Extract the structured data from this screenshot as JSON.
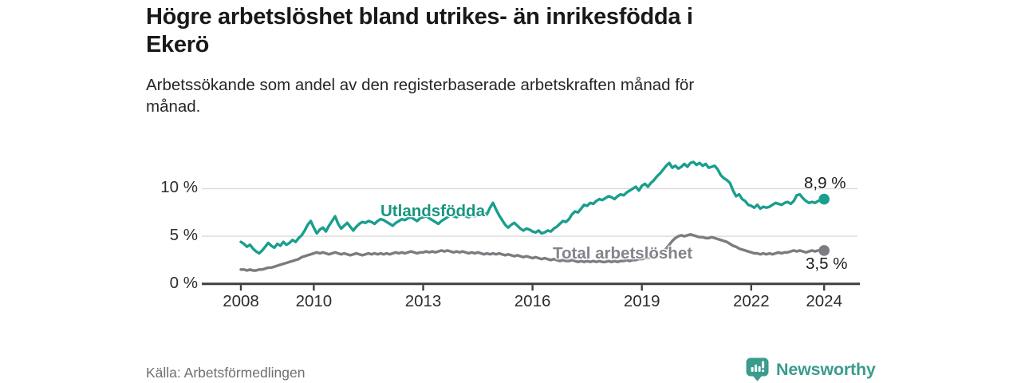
{
  "header": {
    "title": "Högre arbetslöshet bland utrikes- än inrikesfödda i\nEkerö",
    "subtitle": "Arbetssökande som andel av den registerbaserade arbetskraften månad för\nmånad."
  },
  "footer": {
    "source": "Källa: Arbetsförmedlingen",
    "brand": "Newsworthy",
    "brand_icon": "bar-chart-speech-bubble-icon"
  },
  "colors": {
    "foreign_born": "#1a9e8e",
    "total": "#7b7b81",
    "axis": "#3f3f42",
    "grid": "#dadada",
    "title_text": "#191919",
    "tick_text": "#2d2d2d",
    "muted_text": "#6f6f6f",
    "brand": "#3a9c8c"
  },
  "chart_data": {
    "type": "line",
    "title": "Högre arbetslöshet bland utrikes- än inrikesfödda i Ekerö",
    "subtitle": "Arbetssökande som andel av den registerbaserade arbetskraften månad för månad.",
    "xlabel": "",
    "ylabel": "",
    "x_unit": "monthly, January 2008 – January 2024",
    "x_start": 2008.0,
    "x_step_months": 1,
    "xlim": [
      2008,
      2024.08
    ],
    "ylim": [
      0,
      13
    ],
    "grid": "horizontal",
    "legend_position": "inline-labels",
    "yticks": [
      {
        "value": 0,
        "label": "0 %"
      },
      {
        "value": 5,
        "label": "5 %"
      },
      {
        "value": 10,
        "label": "10 %"
      }
    ],
    "xticks": [
      {
        "value": 2008,
        "label": "2008"
      },
      {
        "value": 2010,
        "label": "2010"
      },
      {
        "value": 2013,
        "label": "2013"
      },
      {
        "value": 2016,
        "label": "2016"
      },
      {
        "value": 2019,
        "label": "2019"
      },
      {
        "value": 2022,
        "label": "2022"
      },
      {
        "value": 2024,
        "label": "2024"
      }
    ],
    "series": [
      {
        "name": "Utlandsfödda",
        "color": "#1a9e8e",
        "end_label": "8,9 %",
        "end_value": 8.9,
        "values": [
          4.4,
          4.2,
          3.9,
          4.1,
          3.7,
          3.4,
          3.2,
          3.5,
          3.9,
          4.3,
          4.0,
          3.8,
          4.2,
          4.0,
          4.4,
          4.1,
          4.3,
          4.6,
          4.4,
          4.8,
          5.1,
          5.6,
          6.2,
          6.6,
          5.9,
          5.3,
          5.7,
          5.9,
          5.5,
          6.1,
          6.6,
          7.1,
          6.3,
          5.8,
          6.1,
          6.4,
          6.0,
          5.6,
          6.0,
          6.3,
          6.5,
          6.4,
          6.6,
          6.5,
          6.3,
          6.6,
          6.8,
          6.7,
          6.5,
          6.3,
          6.1,
          6.4,
          6.6,
          6.8,
          6.7,
          6.9,
          7.0,
          6.8,
          6.6,
          6.9,
          7.0,
          7.1,
          6.9,
          6.7,
          6.5,
          6.3,
          6.6,
          6.8,
          7.0,
          7.2,
          7.1,
          7.0,
          7.2,
          7.3,
          7.1,
          7.0,
          7.2,
          7.1,
          7.3,
          7.2,
          7.4,
          7.3,
          8.0,
          8.5,
          7.8,
          7.2,
          6.7,
          6.2,
          5.9,
          6.2,
          6.4,
          6.1,
          5.8,
          5.6,
          5.8,
          5.7,
          5.5,
          5.4,
          5.6,
          5.3,
          5.4,
          5.6,
          5.5,
          5.8,
          6.0,
          6.3,
          6.6,
          6.5,
          6.8,
          7.3,
          7.6,
          7.5,
          7.9,
          8.3,
          8.2,
          8.5,
          8.4,
          8.7,
          8.9,
          8.8,
          9.0,
          9.2,
          9.1,
          8.9,
          9.2,
          9.4,
          9.3,
          9.6,
          9.8,
          10.0,
          10.2,
          9.8,
          10.3,
          10.5,
          10.2,
          10.6,
          10.9,
          11.3,
          11.6,
          12.0,
          12.4,
          12.7,
          12.2,
          12.4,
          12.1,
          12.3,
          12.6,
          12.3,
          12.7,
          12.8,
          12.5,
          12.7,
          12.4,
          12.6,
          12.2,
          12.3,
          12.4,
          12.0,
          11.4,
          11.1,
          10.9,
          10.6,
          9.8,
          9.2,
          9.4,
          8.9,
          8.7,
          8.3,
          8.2,
          8.0,
          8.3,
          7.9,
          8.1,
          8.0,
          8.1,
          8.3,
          8.5,
          8.4,
          8.3,
          8.5,
          8.6,
          8.4,
          8.7,
          9.3,
          9.4,
          9.0,
          8.7,
          8.5,
          8.6,
          8.5,
          8.7,
          8.8,
          8.9
        ]
      },
      {
        "name": "Total arbetslöshet",
        "color": "#7b7b81",
        "end_label": "3,5 %",
        "end_value": 3.5,
        "values": [
          1.5,
          1.5,
          1.4,
          1.5,
          1.4,
          1.4,
          1.5,
          1.5,
          1.6,
          1.7,
          1.7,
          1.8,
          1.9,
          2.0,
          2.1,
          2.2,
          2.3,
          2.4,
          2.5,
          2.6,
          2.8,
          2.9,
          3.0,
          3.1,
          3.2,
          3.3,
          3.2,
          3.3,
          3.2,
          3.1,
          3.2,
          3.3,
          3.2,
          3.1,
          3.2,
          3.1,
          3.0,
          3.1,
          3.2,
          3.1,
          3.0,
          3.1,
          3.2,
          3.1,
          3.2,
          3.1,
          3.2,
          3.1,
          3.2,
          3.1,
          3.2,
          3.3,
          3.2,
          3.3,
          3.2,
          3.3,
          3.4,
          3.3,
          3.2,
          3.3,
          3.3,
          3.4,
          3.3,
          3.4,
          3.3,
          3.4,
          3.5,
          3.4,
          3.5,
          3.4,
          3.3,
          3.4,
          3.3,
          3.4,
          3.3,
          3.2,
          3.3,
          3.2,
          3.3,
          3.2,
          3.1,
          3.2,
          3.1,
          3.2,
          3.1,
          3.2,
          3.1,
          3.0,
          3.1,
          3.0,
          2.9,
          3.0,
          2.9,
          2.8,
          2.9,
          2.8,
          2.7,
          2.8,
          2.7,
          2.6,
          2.7,
          2.6,
          2.5,
          2.6,
          2.5,
          2.4,
          2.5,
          2.4,
          2.4,
          2.5,
          2.4,
          2.3,
          2.4,
          2.3,
          2.4,
          2.3,
          2.4,
          2.3,
          2.4,
          2.3,
          2.3,
          2.4,
          2.3,
          2.4,
          2.3,
          2.4,
          2.4,
          2.5,
          2.4,
          2.5,
          2.5,
          2.6,
          2.6,
          2.7,
          2.7,
          2.8,
          2.9,
          3.0,
          3.2,
          3.4,
          3.7,
          4.1,
          4.5,
          4.8,
          5.0,
          5.1,
          5.0,
          5.1,
          5.2,
          5.1,
          5.0,
          4.9,
          4.9,
          4.8,
          4.8,
          4.9,
          4.8,
          4.7,
          4.6,
          4.5,
          4.4,
          4.2,
          4.0,
          3.9,
          3.7,
          3.6,
          3.5,
          3.4,
          3.3,
          3.2,
          3.2,
          3.1,
          3.2,
          3.1,
          3.2,
          3.1,
          3.2,
          3.3,
          3.2,
          3.3,
          3.3,
          3.4,
          3.5,
          3.4,
          3.5,
          3.4,
          3.3,
          3.4,
          3.5,
          3.4,
          3.5,
          3.5,
          3.5
        ]
      }
    ]
  }
}
